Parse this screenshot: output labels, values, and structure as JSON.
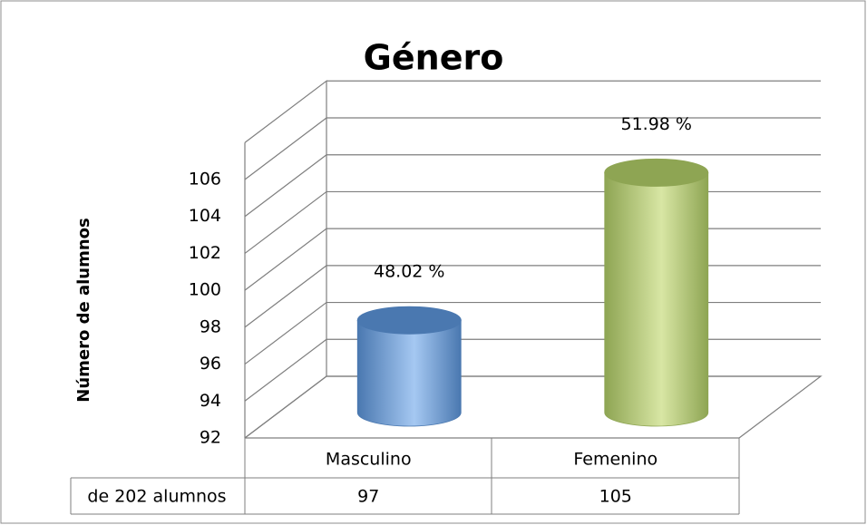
{
  "chart_data": {
    "type": "bar",
    "title": "Género",
    "y_label": "Número de alumnos",
    "categories": [
      "Masculino",
      "Femenino"
    ],
    "values": [
      97,
      105
    ],
    "value_labels": [
      "48.02 %",
      "51.98 %"
    ],
    "colors": [
      [
        "#4a78b0",
        "#a5c8f2"
      ],
      [
        "#8ea553",
        "#d8e6a4"
      ]
    ],
    "table_row_label": "de 202 alumnos",
    "ylim": [
      92,
      108
    ],
    "yticks": [
      92,
      94,
      96,
      98,
      100,
      102,
      104,
      106
    ],
    "grid": true
  }
}
